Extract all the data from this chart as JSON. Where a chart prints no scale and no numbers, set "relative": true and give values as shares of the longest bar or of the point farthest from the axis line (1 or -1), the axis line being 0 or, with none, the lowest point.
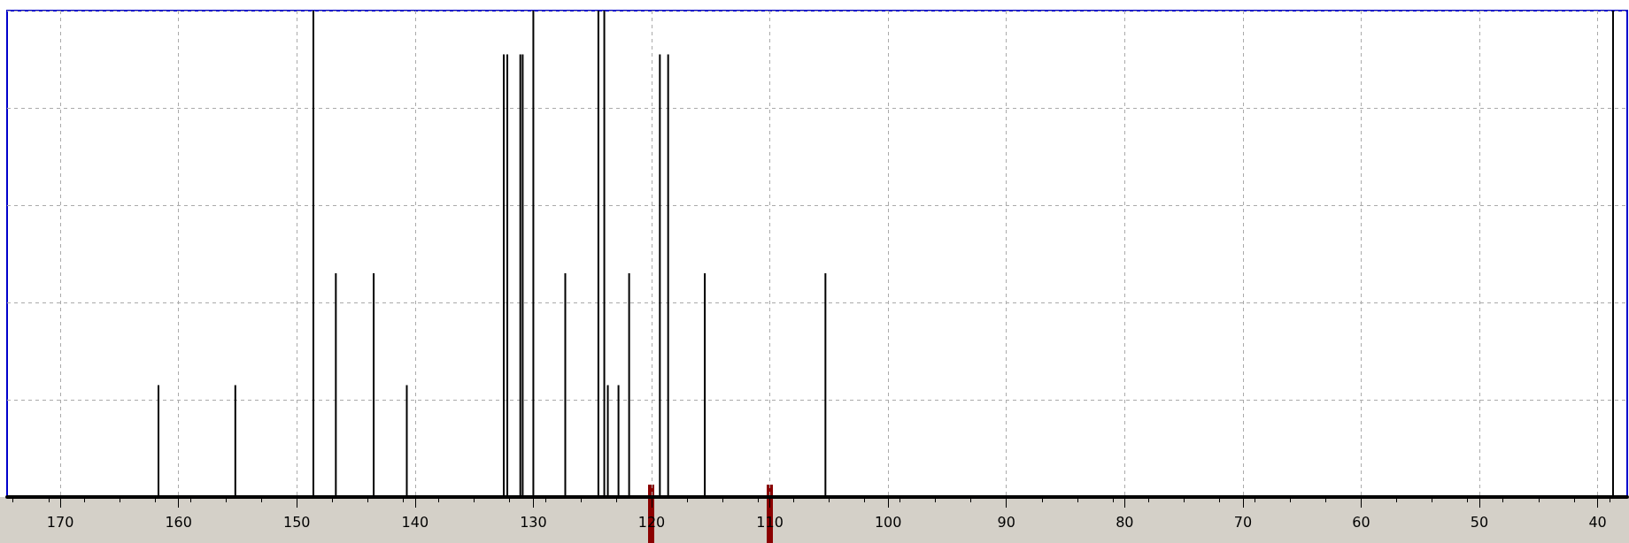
{
  "chart_data": {
    "type": "bar",
    "relative": true,
    "x": [
      161.7,
      155.2,
      148.6,
      146.7,
      143.5,
      140.7,
      132.5,
      132.2,
      131.1,
      130.9,
      130.0,
      127.3,
      124.5,
      124.0,
      123.7,
      122.8,
      121.9,
      119.3,
      118.6,
      115.5,
      105.3,
      38.7
    ],
    "values": [
      0.23,
      0.23,
      1,
      0.46,
      0.46,
      0.23,
      0.91,
      0.91,
      0.91,
      0.91,
      1,
      0.46,
      1,
      1,
      0.23,
      0.23,
      0.46,
      0.91,
      0.91,
      0.46,
      0.46,
      1
    ],
    "color": "#000000",
    "xlim": [
      174.5,
      37.5
    ],
    "xticks": [
      170,
      160,
      150,
      140,
      130,
      120,
      110,
      100,
      90,
      80,
      70,
      60,
      50,
      40
    ],
    "grid": true
  }
}
